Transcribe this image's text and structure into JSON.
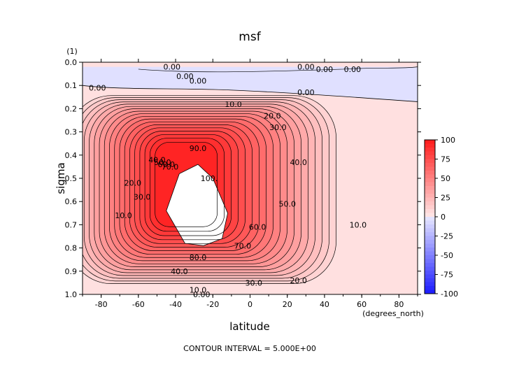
{
  "chart_data": {
    "type": "contour",
    "title": "msf",
    "xlabel": "latitude",
    "xunits": "(degrees_north)",
    "ylabel": "sigma",
    "yunits": "(1)",
    "footer": "CONTOUR INTERVAL = 5.000E+00",
    "xlim": [
      -90,
      90
    ],
    "ylim": [
      0.0,
      1.0
    ],
    "x_ticks": [
      "-80",
      "-60",
      "-40",
      "-20",
      "0",
      "20",
      "40",
      "60",
      "80"
    ],
    "y_ticks": [
      "0.0",
      "0.1",
      "0.2",
      "0.3",
      "0.4",
      "0.5",
      "0.6",
      "0.7",
      "0.8",
      "0.9",
      "1.0"
    ],
    "colorbar": {
      "min": -100,
      "max": 100,
      "step": 5,
      "ticks": [
        "100",
        "75",
        "50",
        "25",
        "0",
        "-25",
        "-50",
        "-75",
        "-100"
      ],
      "positive_color": "#ff1a1a",
      "negative_color": "#1a1aff"
    },
    "cell": {
      "center_lat": -25,
      "center_sigma": 0.55,
      "peak_value": 100,
      "lat_extent": [
        -80,
        70
      ],
      "sigma_extent": [
        0.15,
        0.98
      ]
    },
    "contour_labels": [
      {
        "text": "0.00",
        "lat": -42,
        "sigma": 0.02
      },
      {
        "text": "0.00",
        "lat": -35,
        "sigma": 0.06
      },
      {
        "text": "0.00",
        "lat": -28,
        "sigma": 0.08
      },
      {
        "text": "0.00",
        "lat": -82,
        "sigma": 0.11
      },
      {
        "text": "0.00",
        "lat": 30,
        "sigma": 0.02
      },
      {
        "text": "0.00",
        "lat": 40,
        "sigma": 0.03
      },
      {
        "text": "0.00",
        "lat": 55,
        "sigma": 0.03
      },
      {
        "text": "0.00",
        "lat": 30,
        "sigma": 0.13
      },
      {
        "text": "10.0",
        "lat": -9,
        "sigma": 0.18
      },
      {
        "text": "20.0",
        "lat": 12,
        "sigma": 0.23
      },
      {
        "text": "30.0",
        "lat": 15,
        "sigma": 0.28
      },
      {
        "text": "40.0",
        "lat": 26,
        "sigma": 0.43
      },
      {
        "text": "50.0",
        "lat": 20,
        "sigma": 0.61
      },
      {
        "text": "60.0",
        "lat": 4,
        "sigma": 0.71
      },
      {
        "text": "70.0",
        "lat": -4,
        "sigma": 0.79
      },
      {
        "text": "80.0",
        "lat": -28,
        "sigma": 0.84
      },
      {
        "text": "90.0",
        "lat": -28,
        "sigma": 0.37
      },
      {
        "text": "100.",
        "lat": -22,
        "sigma": 0.5
      },
      {
        "text": "40.0",
        "lat": -38,
        "sigma": 0.9
      },
      {
        "text": "30.0",
        "lat": 2,
        "sigma": 0.95
      },
      {
        "text": "20.0",
        "lat": 26,
        "sigma": 0.94
      },
      {
        "text": "10.0",
        "lat": -28,
        "sigma": 0.98
      },
      {
        "text": "0.00",
        "lat": -26,
        "sigma": 1.0
      },
      {
        "text": "10.0",
        "lat": -68,
        "sigma": 0.66
      },
      {
        "text": "20.0",
        "lat": -63,
        "sigma": 0.52
      },
      {
        "text": "30.0",
        "lat": -58,
        "sigma": 0.58
      },
      {
        "text": "40.0",
        "lat": -50,
        "sigma": 0.42
      },
      {
        "text": "50.0",
        "lat": -47,
        "sigma": 0.43
      },
      {
        "text": "60.0",
        "lat": -45,
        "sigma": 0.44
      },
      {
        "text": "70.0",
        "lat": -43,
        "sigma": 0.45
      },
      {
        "text": "10.0",
        "lat": 58,
        "sigma": 0.7
      }
    ]
  }
}
